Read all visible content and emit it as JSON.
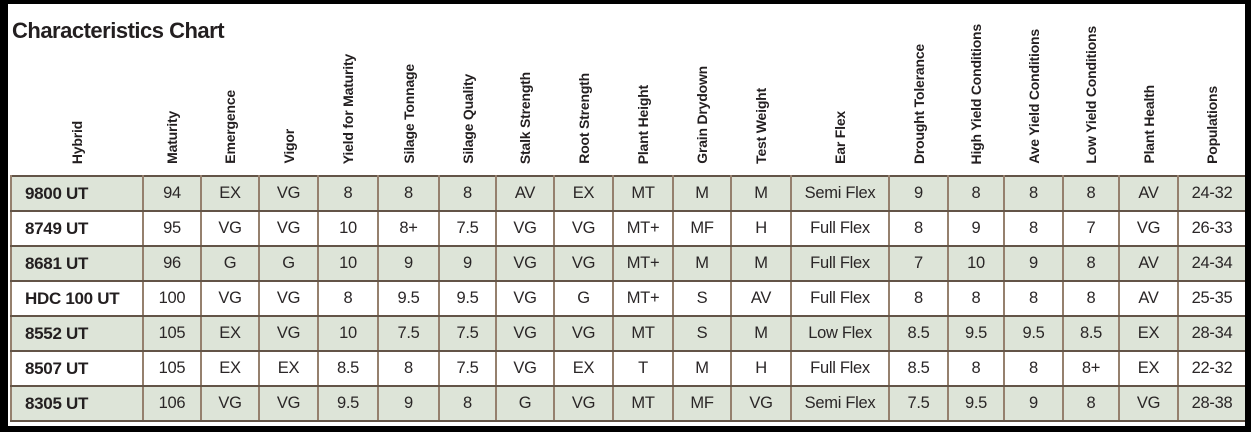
{
  "title": "Characteristics Chart",
  "colors": {
    "row_alternate_fill": "#dde4d8",
    "grid_vertical": "#95806e",
    "grid_horizontal": "#635447",
    "table_outline": "#45392f",
    "page_frame": "#000000",
    "text": "#231f20"
  },
  "chart_data": {
    "type": "table",
    "title": "Characteristics Chart",
    "columns": [
      "Hybrid",
      "Maturity",
      "Emergence",
      "Vigor",
      "Yield for Maturity",
      "Silage Tonnage",
      "Silage Quality",
      "Stalk Strength",
      "Root Strength",
      "Plant Height",
      "Grain Drydown",
      "Test Weight",
      "Ear Flex",
      "Drought Tolerance",
      "High Yield Conditions",
      "Ave Yield Conditions",
      "Low Yield Conditions",
      "Plant Health",
      "Populations"
    ],
    "rows": [
      [
        "9800 UT",
        "94",
        "EX",
        "VG",
        "8",
        "8",
        "8",
        "AV",
        "EX",
        "MT",
        "M",
        "M",
        "Semi Flex",
        "9",
        "8",
        "8",
        "8",
        "AV",
        "24-32"
      ],
      [
        "8749 UT",
        "95",
        "VG",
        "VG",
        "10",
        "8+",
        "7.5",
        "VG",
        "VG",
        "MT+",
        "MF",
        "H",
        "Full Flex",
        "8",
        "9",
        "8",
        "7",
        "VG",
        "26-33"
      ],
      [
        "8681 UT",
        "96",
        "G",
        "G",
        "10",
        "9",
        "9",
        "VG",
        "VG",
        "MT+",
        "M",
        "M",
        "Full Flex",
        "7",
        "10",
        "9",
        "8",
        "AV",
        "24-34"
      ],
      [
        "HDC 100 UT",
        "100",
        "VG",
        "VG",
        "8",
        "9.5",
        "9.5",
        "VG",
        "G",
        "MT+",
        "S",
        "AV",
        "Full Flex",
        "8",
        "8",
        "8",
        "8",
        "AV",
        "25-35"
      ],
      [
        "8552 UT",
        "105",
        "EX",
        "VG",
        "10",
        "7.5",
        "7.5",
        "VG",
        "VG",
        "MT",
        "S",
        "M",
        "Low Flex",
        "8.5",
        "9.5",
        "9.5",
        "8.5",
        "EX",
        "28-34"
      ],
      [
        "8507 UT",
        "105",
        "EX",
        "EX",
        "8.5",
        "8",
        "7.5",
        "VG",
        "EX",
        "T",
        "M",
        "H",
        "Full Flex",
        "8.5",
        "8",
        "8",
        "8+",
        "EX",
        "22-32"
      ],
      [
        "8305 UT",
        "106",
        "VG",
        "VG",
        "9.5",
        "9",
        "8",
        "G",
        "VG",
        "MT",
        "MF",
        "VG",
        "Semi Flex",
        "7.5",
        "9.5",
        "9",
        "8",
        "VG",
        "28-38"
      ]
    ]
  }
}
